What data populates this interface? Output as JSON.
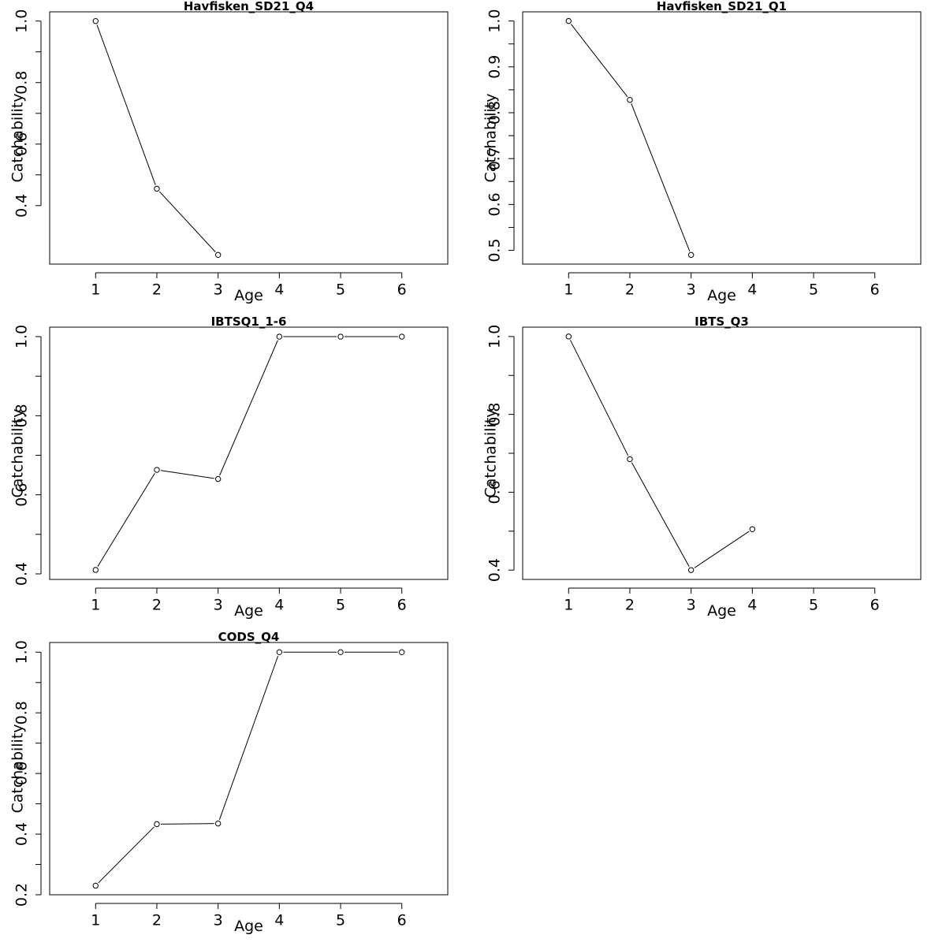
{
  "chart_data": [
    {
      "type": "line",
      "title": "Havfisken_SD21_Q4",
      "xlabel": "Age",
      "ylabel": "Catchability",
      "x": [
        1,
        2,
        3
      ],
      "values": [
        1.0,
        0.455,
        0.24
      ],
      "xlim": [
        0.25,
        6.75
      ],
      "ylim": [
        0.21,
        1.03
      ],
      "xticks": [
        1,
        2,
        3,
        4,
        5,
        6
      ],
      "yticks": [
        0.4,
        0.6,
        0.8,
        1.0
      ],
      "ytick_labels": [
        "0.4",
        "0.6",
        "0.8",
        "1.0"
      ],
      "grid": false
    },
    {
      "type": "line",
      "title": "Havfisken_SD21_Q1",
      "xlabel": "Age",
      "ylabel": "Catchability",
      "x": [
        1,
        2,
        3
      ],
      "values": [
        1.0,
        0.828,
        0.49
      ],
      "xlim": [
        0.25,
        6.75
      ],
      "ylim": [
        0.47,
        1.02
      ],
      "xticks": [
        1,
        2,
        3,
        4,
        5,
        6
      ],
      "yticks": [
        0.5,
        0.6,
        0.7,
        0.8,
        0.9,
        1.0
      ],
      "ytick_labels": [
        "0.5",
        "0.6",
        "0.7",
        "0.8",
        "0.9",
        "1.0"
      ],
      "grid": false
    },
    {
      "type": "line",
      "title": "IBTSQ1_1-6",
      "xlabel": "Age",
      "ylabel": "Catchability",
      "x": [
        1,
        2,
        3,
        4,
        5,
        6
      ],
      "values": [
        0.41,
        0.663,
        0.64,
        1.0,
        1.0,
        1.0
      ],
      "xlim": [
        0.25,
        6.75
      ],
      "ylim": [
        0.386,
        1.024
      ],
      "xticks": [
        1,
        2,
        3,
        4,
        5,
        6
      ],
      "yticks": [
        0.4,
        0.6,
        0.8,
        1.0
      ],
      "ytick_labels": [
        "0.4",
        "0.6",
        "0.8",
        "1.0"
      ],
      "grid": false
    },
    {
      "type": "line",
      "title": "IBTS_Q3",
      "xlabel": "Age",
      "ylabel": "Catchability",
      "x": [
        1,
        2,
        3,
        4
      ],
      "values": [
        1.0,
        0.685,
        0.4,
        0.505
      ],
      "xlim": [
        0.25,
        6.75
      ],
      "ylim": [
        0.376,
        1.024
      ],
      "xticks": [
        1,
        2,
        3,
        4,
        5,
        6
      ],
      "yticks": [
        0.4,
        0.6,
        0.8,
        1.0
      ],
      "ytick_labels": [
        "0.4",
        "0.6",
        "0.8",
        "1.0"
      ],
      "grid": false
    },
    {
      "type": "line",
      "title": "CODS_Q4",
      "xlabel": "Age",
      "ylabel": "Catchability",
      "x": [
        1,
        2,
        3,
        4,
        5,
        6
      ],
      "values": [
        0.23,
        0.433,
        0.435,
        1.0,
        1.0,
        1.0
      ],
      "xlim": [
        0.25,
        6.75
      ],
      "ylim": [
        0.2,
        1.032
      ],
      "xticks": [
        1,
        2,
        3,
        4,
        5,
        6
      ],
      "yticks": [
        0.2,
        0.4,
        0.6,
        0.8,
        1.0
      ],
      "ytick_labels": [
        "0.2",
        "0.4",
        "0.6",
        "0.8",
        "1.0"
      ],
      "grid": false
    }
  ]
}
